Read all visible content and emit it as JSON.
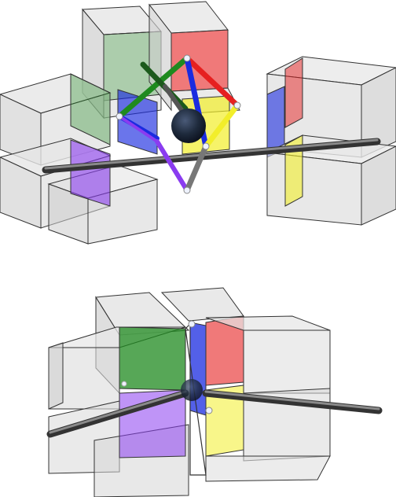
{
  "colors": {
    "green": "#1f8a1f",
    "red": "#e62020",
    "blue": "#1a2be0",
    "yellow": "#f2ee2a",
    "purple": "#8a3cf0",
    "grey_box": "#c8c8c8",
    "rod": "#555555",
    "node": "#1e2a3c"
  },
  "figures": [
    {
      "label": "",
      "view": "expanded",
      "face_colors": [
        "green",
        "red",
        "blue",
        "yellow",
        "purple"
      ]
    },
    {
      "label": "",
      "view": "assembled",
      "face_colors": [
        "green",
        "red",
        "blue",
        "yellow",
        "purple"
      ]
    }
  ]
}
